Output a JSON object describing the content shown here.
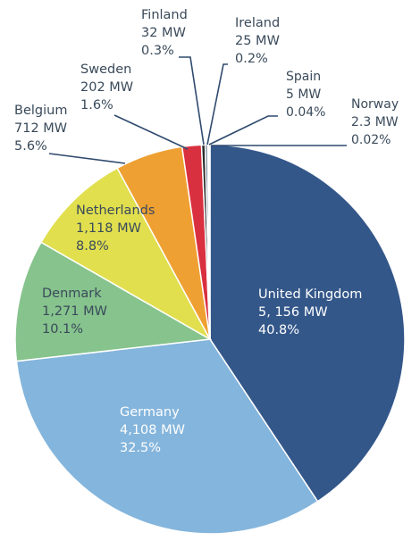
{
  "chart_data": {
    "type": "pie",
    "colors": {
      "label_dark": "#3a4a5a",
      "label_light": "#ffffff",
      "leader_line": "#2f4a6e"
    },
    "slices": [
      {
        "name": "United Kingdom",
        "value_label": "5, 156 MW",
        "mw": 5156,
        "percent_label": "40.8%",
        "percent": 40.8,
        "color": "#34578a"
      },
      {
        "name": "Germany",
        "value_label": "4,108 MW",
        "mw": 4108,
        "percent_label": "32.5%",
        "percent": 32.5,
        "color": "#84b5dc"
      },
      {
        "name": "Denmark",
        "value_label": "1,271 MW",
        "mw": 1271,
        "percent_label": "10.1%",
        "percent": 10.1,
        "color": "#86c38d"
      },
      {
        "name": "Netherlands",
        "value_label": "1,118 MW",
        "mw": 1118,
        "percent_label": "8.8%",
        "percent": 8.8,
        "color": "#e1df4e"
      },
      {
        "name": "Belgium",
        "value_label": "712 MW",
        "mw": 712,
        "percent_label": "5.6%",
        "percent": 5.6,
        "color": "#efa032"
      },
      {
        "name": "Sweden",
        "value_label": "202 MW",
        "mw": 202,
        "percent_label": "1.6%",
        "percent": 1.6,
        "color": "#d93040"
      },
      {
        "name": "Finland",
        "value_label": "32 MW",
        "mw": 32,
        "percent_label": "0.3%",
        "percent": 0.3,
        "color": "#2b2b2b"
      },
      {
        "name": "Ireland",
        "value_label": "25 MW",
        "mw": 25,
        "percent_label": "0.2%",
        "percent": 0.2,
        "color": "#5a6f85"
      },
      {
        "name": "Spain",
        "value_label": "5 MW",
        "mw": 5,
        "percent_label": "0.04%",
        "percent": 0.04,
        "color": "#8aa5c0"
      },
      {
        "name": "Norway",
        "value_label": "2.3 MW",
        "mw": 2.3,
        "percent_label": "0.02%",
        "percent": 0.02,
        "color": "#b5c7d8"
      }
    ]
  }
}
